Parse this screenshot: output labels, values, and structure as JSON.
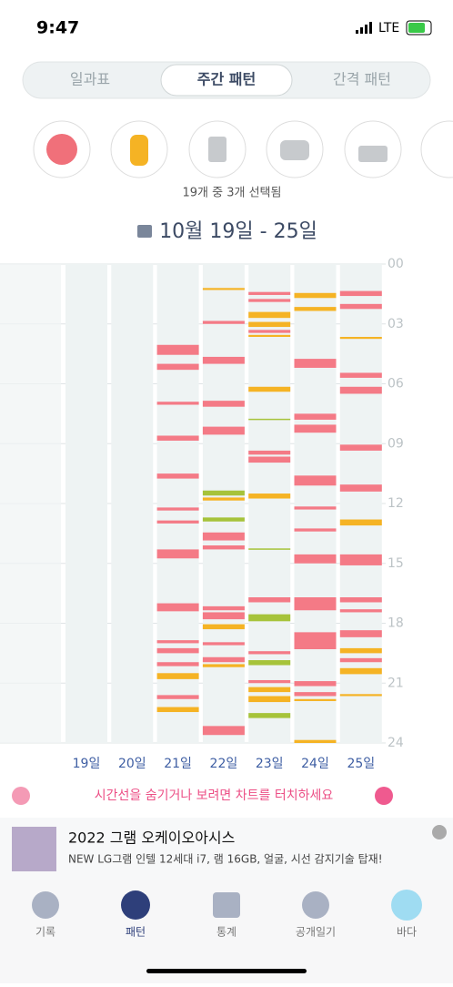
{
  "status": {
    "time": "9:47",
    "network": "LTE"
  },
  "tabs": [
    "일과표",
    "주간 패턴",
    "간격 패턴"
  ],
  "selection_note": "19개 중 3개 선택됨",
  "date_range": "10월 19일 - 25일",
  "hint": "시간선을 숨기거나 보려면 차트를 터치하세요",
  "ad": {
    "title": "2022 그램 오케이오아시스",
    "subtitle": "NEW LG그램 인텔 12세대 i7, 램 16GB, 얼굴, 시선 감지기술 탑재!"
  },
  "nav": [
    "기록",
    "패턴",
    "통계",
    "공개일기",
    "바다"
  ],
  "chart_data": {
    "type": "timeline",
    "categories": [
      "19일",
      "20일",
      "21일",
      "22일",
      "23일",
      "24일",
      "25일"
    ],
    "ylim": [
      0,
      24
    ],
    "yticks": [
      {
        "value": 0,
        "label": "00"
      },
      {
        "value": 3,
        "label": "03"
      },
      {
        "value": 6,
        "label": "06"
      },
      {
        "value": 9,
        "label": "09"
      },
      12,
      15,
      18,
      21,
      24
    ],
    "grid": true,
    "days": [
      {
        "events": []
      },
      {
        "events": []
      },
      {
        "events": [
          {
            "start": 4.05,
            "end": 4.55,
            "color": "#f47a86"
          },
          {
            "start": 5.0,
            "end": 5.3,
            "color": "#f47a86"
          },
          {
            "start": 6.9,
            "end": 7.05,
            "color": "#f47a86"
          },
          {
            "start": 8.6,
            "end": 8.85,
            "color": "#f47a86"
          },
          {
            "start": 10.5,
            "end": 10.75,
            "color": "#f47a86"
          },
          {
            "start": 12.2,
            "end": 12.35,
            "color": "#f47a86"
          },
          {
            "start": 12.85,
            "end": 13.0,
            "color": "#f47a86"
          },
          {
            "start": 14.3,
            "end": 14.75,
            "color": "#f47a86"
          },
          {
            "start": 17.0,
            "end": 17.4,
            "color": "#f47a86"
          },
          {
            "start": 18.85,
            "end": 19.0,
            "color": "#f47a86"
          },
          {
            "start": 19.25,
            "end": 19.5,
            "color": "#f47a86"
          },
          {
            "start": 19.95,
            "end": 20.15,
            "color": "#f47a86"
          },
          {
            "start": 20.5,
            "end": 20.8,
            "color": "#f5b324"
          },
          {
            "start": 21.6,
            "end": 21.8,
            "color": "#f47a86"
          },
          {
            "start": 22.2,
            "end": 22.45,
            "color": "#f5b324"
          }
        ]
      },
      {
        "events": [
          {
            "start": 1.2,
            "end": 1.3,
            "color": "#f5b324"
          },
          {
            "start": 2.85,
            "end": 3.0,
            "color": "#f47a86"
          },
          {
            "start": 4.65,
            "end": 5.0,
            "color": "#f47a86"
          },
          {
            "start": 6.85,
            "end": 7.15,
            "color": "#f47a86"
          },
          {
            "start": 8.15,
            "end": 8.55,
            "color": "#f47a86"
          },
          {
            "start": 11.35,
            "end": 11.6,
            "color": "#a6c33a"
          },
          {
            "start": 11.7,
            "end": 11.85,
            "color": "#f5b324"
          },
          {
            "start": 12.7,
            "end": 12.9,
            "color": "#a6c33a"
          },
          {
            "start": 13.45,
            "end": 13.85,
            "color": "#f47a86"
          },
          {
            "start": 14.1,
            "end": 14.3,
            "color": "#f47a86"
          },
          {
            "start": 17.15,
            "end": 17.35,
            "color": "#f47a86"
          },
          {
            "start": 17.45,
            "end": 17.8,
            "color": "#f47a86"
          },
          {
            "start": 18.05,
            "end": 18.3,
            "color": "#f5b324"
          },
          {
            "start": 18.95,
            "end": 19.1,
            "color": "#f47a86"
          },
          {
            "start": 19.7,
            "end": 19.95,
            "color": "#f47a86"
          },
          {
            "start": 20.05,
            "end": 20.2,
            "color": "#f5b324"
          },
          {
            "start": 23.15,
            "end": 23.6,
            "color": "#f47a86"
          }
        ]
      },
      {
        "events": [
          {
            "start": 1.4,
            "end": 1.55,
            "color": "#f47a86"
          },
          {
            "start": 1.75,
            "end": 1.9,
            "color": "#f47a86"
          },
          {
            "start": 2.4,
            "end": 2.7,
            "color": "#f5b324"
          },
          {
            "start": 2.9,
            "end": 3.15,
            "color": "#f5b324"
          },
          {
            "start": 3.3,
            "end": 3.45,
            "color": "#f47a86"
          },
          {
            "start": 3.55,
            "end": 3.65,
            "color": "#f5b324"
          },
          {
            "start": 6.15,
            "end": 6.4,
            "color": "#f5b324"
          },
          {
            "start": 7.75,
            "end": 7.8,
            "color": "#a6c33a"
          },
          {
            "start": 9.35,
            "end": 9.55,
            "color": "#f47a86"
          },
          {
            "start": 9.65,
            "end": 9.95,
            "color": "#f47a86"
          },
          {
            "start": 11.5,
            "end": 11.75,
            "color": "#f5b324"
          },
          {
            "start": 14.25,
            "end": 14.3,
            "color": "#a6c33a"
          },
          {
            "start": 16.7,
            "end": 16.95,
            "color": "#f47a86"
          },
          {
            "start": 17.55,
            "end": 17.9,
            "color": "#a6c33a"
          },
          {
            "start": 19.4,
            "end": 19.55,
            "color": "#f47a86"
          },
          {
            "start": 19.85,
            "end": 20.1,
            "color": "#a6c33a"
          },
          {
            "start": 20.85,
            "end": 21.0,
            "color": "#f47a86"
          },
          {
            "start": 21.2,
            "end": 21.45,
            "color": "#f5b324"
          },
          {
            "start": 21.65,
            "end": 21.95,
            "color": "#f5b324"
          },
          {
            "start": 22.5,
            "end": 22.75,
            "color": "#a6c33a"
          }
        ]
      },
      {
        "events": [
          {
            "start": 1.45,
            "end": 1.7,
            "color": "#f5b324"
          },
          {
            "start": 2.15,
            "end": 2.35,
            "color": "#f5b324"
          },
          {
            "start": 4.75,
            "end": 5.2,
            "color": "#f47a86"
          },
          {
            "start": 7.5,
            "end": 7.8,
            "color": "#f47a86"
          },
          {
            "start": 8.05,
            "end": 8.45,
            "color": "#f47a86"
          },
          {
            "start": 10.6,
            "end": 11.1,
            "color": "#f47a86"
          },
          {
            "start": 12.15,
            "end": 12.3,
            "color": "#f47a86"
          },
          {
            "start": 13.25,
            "end": 13.4,
            "color": "#f47a86"
          },
          {
            "start": 14.55,
            "end": 15.0,
            "color": "#f47a86"
          },
          {
            "start": 16.7,
            "end": 17.35,
            "color": "#f47a86"
          },
          {
            "start": 18.45,
            "end": 19.3,
            "color": "#f47a86"
          },
          {
            "start": 20.9,
            "end": 21.15,
            "color": "#f47a86"
          },
          {
            "start": 21.45,
            "end": 21.65,
            "color": "#f47a86"
          },
          {
            "start": 21.8,
            "end": 21.9,
            "color": "#f5b324"
          },
          {
            "start": 23.85,
            "end": 24,
            "color": "#f5b324"
          }
        ]
      },
      {
        "events": [
          {
            "start": 1.35,
            "end": 1.6,
            "color": "#f47a86"
          },
          {
            "start": 2.0,
            "end": 2.25,
            "color": "#f47a86"
          },
          {
            "start": 3.65,
            "end": 3.75,
            "color": "#f5b324"
          },
          {
            "start": 5.45,
            "end": 5.7,
            "color": "#f47a86"
          },
          {
            "start": 6.15,
            "end": 6.5,
            "color": "#f47a86"
          },
          {
            "start": 9.05,
            "end": 9.35,
            "color": "#f47a86"
          },
          {
            "start": 11.05,
            "end": 11.4,
            "color": "#f47a86"
          },
          {
            "start": 12.8,
            "end": 13.1,
            "color": "#f5b324"
          },
          {
            "start": 14.55,
            "end": 15.1,
            "color": "#f47a86"
          },
          {
            "start": 16.7,
            "end": 16.95,
            "color": "#f47a86"
          },
          {
            "start": 17.3,
            "end": 17.45,
            "color": "#f47a86"
          },
          {
            "start": 18.35,
            "end": 18.7,
            "color": "#f47a86"
          },
          {
            "start": 19.25,
            "end": 19.5,
            "color": "#f5b324"
          },
          {
            "start": 19.75,
            "end": 19.95,
            "color": "#f47a86"
          },
          {
            "start": 20.25,
            "end": 20.55,
            "color": "#f5b324"
          },
          {
            "start": 21.55,
            "end": 21.65,
            "color": "#f5b324"
          }
        ]
      }
    ]
  }
}
